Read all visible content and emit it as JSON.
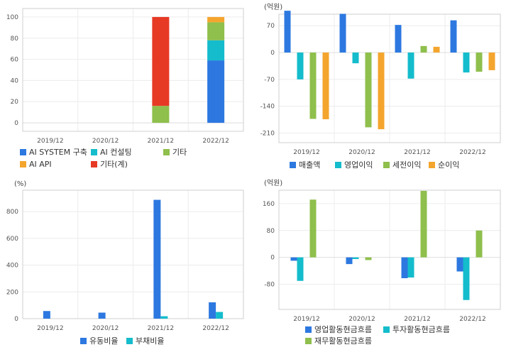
{
  "chart_data": [
    {
      "type": "bar",
      "stacked": true,
      "unit": "",
      "categories": [
        "2019/12",
        "2020/12",
        "2021/12",
        "2022/12"
      ],
      "ylim": [
        -8,
        108
      ],
      "yticks": [
        0,
        20,
        40,
        60,
        80,
        100
      ],
      "grid": true,
      "legend_position": "bottom",
      "series": [
        {
          "name": "AI SYSTEM 구축",
          "color": "#2c78e0",
          "values": [
            0,
            0,
            0,
            59
          ]
        },
        {
          "name": "AI 컨설팅",
          "color": "#14bccc",
          "values": [
            0,
            0,
            0,
            19
          ]
        },
        {
          "name": "기타",
          "color": "#8fbf4c",
          "values": [
            0,
            0,
            16,
            17
          ]
        },
        {
          "name": "AI API",
          "color": "#f4a52e",
          "values": [
            0,
            0,
            0,
            5
          ]
        },
        {
          "name": "기타(계)",
          "color": "#e63a25",
          "values": [
            0,
            0,
            84,
            0
          ]
        }
      ]
    },
    {
      "type": "bar",
      "stacked": false,
      "unit": "(억원)",
      "categories": [
        "2019/12",
        "2020/12",
        "2021/12",
        "2022/12"
      ],
      "ylim": [
        -235,
        100
      ],
      "yticks": [
        70,
        0,
        -70,
        -140,
        -210
      ],
      "grid": true,
      "legend_position": "bottom",
      "series": [
        {
          "name": "매출액",
          "color": "#2c78e0",
          "values": [
            109,
            101,
            72,
            84
          ]
        },
        {
          "name": "영업이익",
          "color": "#14bccc",
          "values": [
            -70,
            -28,
            -68,
            -52
          ]
        },
        {
          "name": "세전이익",
          "color": "#8fbf4c",
          "values": [
            -173,
            -195,
            17,
            -50
          ]
        },
        {
          "name": "순이익",
          "color": "#f4a52e",
          "values": [
            -174,
            -200,
            15,
            -46
          ]
        }
      ]
    },
    {
      "type": "bar",
      "stacked": false,
      "unit": "(%)",
      "categories": [
        "2019/12",
        "2020/12",
        "2021/12",
        "2022/12"
      ],
      "ylim": [
        0,
        960
      ],
      "yticks": [
        0,
        200,
        400,
        600,
        800
      ],
      "grid": true,
      "legend_position": "bottom",
      "series": [
        {
          "name": "유동비율",
          "color": "#2c78e0",
          "values": [
            57,
            45,
            888,
            122
          ]
        },
        {
          "name": "부채비율",
          "color": "#14bccc",
          "values": [
            0,
            0,
            18,
            50
          ]
        }
      ]
    },
    {
      "type": "bar",
      "stacked": false,
      "unit": "(억원)",
      "categories": [
        "2019/12",
        "2020/12",
        "2021/12",
        "2022/12"
      ],
      "ylim": [
        -155,
        200
      ],
      "yticks": [
        160,
        80,
        0,
        -80
      ],
      "grid": true,
      "legend_position": "bottom",
      "series": [
        {
          "name": "영업활동현금흐름",
          "color": "#2c78e0",
          "values": [
            -10,
            -20,
            -62,
            -42
          ]
        },
        {
          "name": "투자활동현금흐름",
          "color": "#14bccc",
          "values": [
            -70,
            -5,
            -60,
            -127
          ]
        },
        {
          "name": "재무활동현금흐름",
          "color": "#8fbf4c",
          "values": [
            172,
            -8,
            198,
            80
          ]
        }
      ]
    }
  ]
}
